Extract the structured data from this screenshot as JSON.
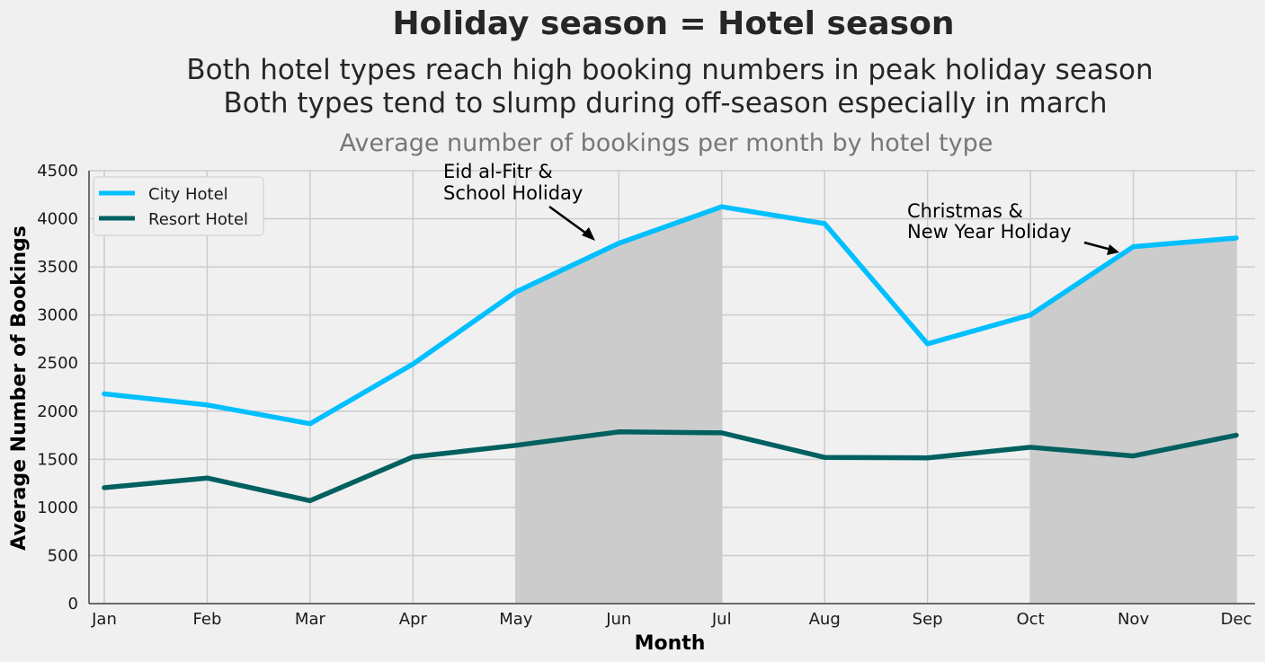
{
  "chart_data": {
    "type": "line",
    "title": "Holiday season = Hotel season",
    "subtitle_lines": [
      "Both hotel types reach high booking numbers in peak holiday season",
      "Both types tend to slump during off-season especially in march"
    ],
    "plot_title": "Average number of bookings per month by hotel type",
    "xlabel": "Month",
    "ylabel": "Average Number of Bookings",
    "categories": [
      "Jan",
      "Feb",
      "Mar",
      "Apr",
      "May",
      "Jun",
      "Jul",
      "Aug",
      "Sep",
      "Oct",
      "Nov",
      "Dec"
    ],
    "ylim": [
      0,
      4500
    ],
    "yticks": [
      "0",
      "500",
      "1000",
      "1500",
      "2000",
      "2500",
      "3000",
      "3500",
      "4000",
      "4500"
    ],
    "grid": true,
    "legend_position": "top-left",
    "series": [
      {
        "name": "City Hotel",
        "color": "#00bfff",
        "values": [
          2180,
          2065,
          1870,
          2490,
          3240,
          3745,
          4125,
          3950,
          2700,
          3000,
          3710,
          3800
        ]
      },
      {
        "name": "Resort Hotel",
        "color": "#006060",
        "values": [
          1205,
          1305,
          1070,
          1525,
          1645,
          1785,
          1775,
          1520,
          1515,
          1625,
          1535,
          1750
        ]
      }
    ],
    "shaded_periods": [
      {
        "from": "May",
        "to": "Jul",
        "color": "#cccccc"
      },
      {
        "from": "Oct",
        "to": "Dec",
        "color": "#cccccc"
      }
    ],
    "annotations": [
      {
        "lines": [
          "Eid al-Fitr &",
          "School Holiday"
        ],
        "target_month": "Jun",
        "target_value": 3745
      },
      {
        "lines": [
          "Christmas &",
          "New Year Holiday"
        ],
        "target_month": "Nov",
        "target_value": 3650
      }
    ]
  }
}
